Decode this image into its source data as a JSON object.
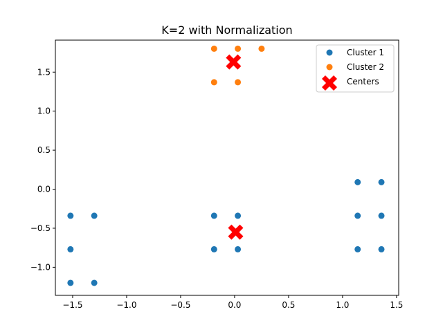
{
  "chart_data": {
    "type": "scatter",
    "title": "K=2 with Normalization",
    "xlabel": "",
    "ylabel": "",
    "xlim": [
      -1.66,
      1.52
    ],
    "ylim": [
      -1.36,
      1.91
    ],
    "xticks": [
      -1.5,
      -1.0,
      -0.5,
      0.0,
      0.5,
      1.0,
      1.5
    ],
    "xtick_labels": [
      "−1.5",
      "−1.0",
      "−0.5",
      "0.0",
      "0.5",
      "1.0",
      "1.5"
    ],
    "yticks": [
      -1.0,
      -0.5,
      0.0,
      0.5,
      1.0,
      1.5
    ],
    "ytick_labels": [
      "−1.0",
      "−0.5",
      "0.0",
      "0.5",
      "1.0",
      "1.5"
    ],
    "grid": false,
    "legend_position": "top-right",
    "series": [
      {
        "name": "Cluster 1",
        "color": "#1f77b4",
        "marker": "circle",
        "points": [
          [
            -1.52,
            -0.34
          ],
          [
            -1.3,
            -0.34
          ],
          [
            -1.52,
            -0.77
          ],
          [
            -1.52,
            -1.2
          ],
          [
            -1.3,
            -1.2
          ],
          [
            -0.19,
            -0.34
          ],
          [
            0.03,
            -0.34
          ],
          [
            -0.19,
            -0.77
          ],
          [
            0.03,
            -0.77
          ],
          [
            1.14,
            0.09
          ],
          [
            1.36,
            0.09
          ],
          [
            1.14,
            -0.34
          ],
          [
            1.36,
            -0.34
          ],
          [
            1.14,
            -0.77
          ],
          [
            1.36,
            -0.77
          ]
        ]
      },
      {
        "name": "Cluster 2",
        "color": "#ff7f0e",
        "marker": "circle",
        "points": [
          [
            -0.19,
            1.8
          ],
          [
            0.03,
            1.8
          ],
          [
            0.25,
            1.8
          ],
          [
            -0.19,
            1.37
          ],
          [
            0.03,
            1.37
          ]
        ]
      },
      {
        "name": "Centers",
        "color": "#ff0000",
        "marker": "X",
        "points": [
          [
            -0.01,
            1.63
          ],
          [
            0.01,
            -0.55
          ]
        ]
      }
    ]
  }
}
